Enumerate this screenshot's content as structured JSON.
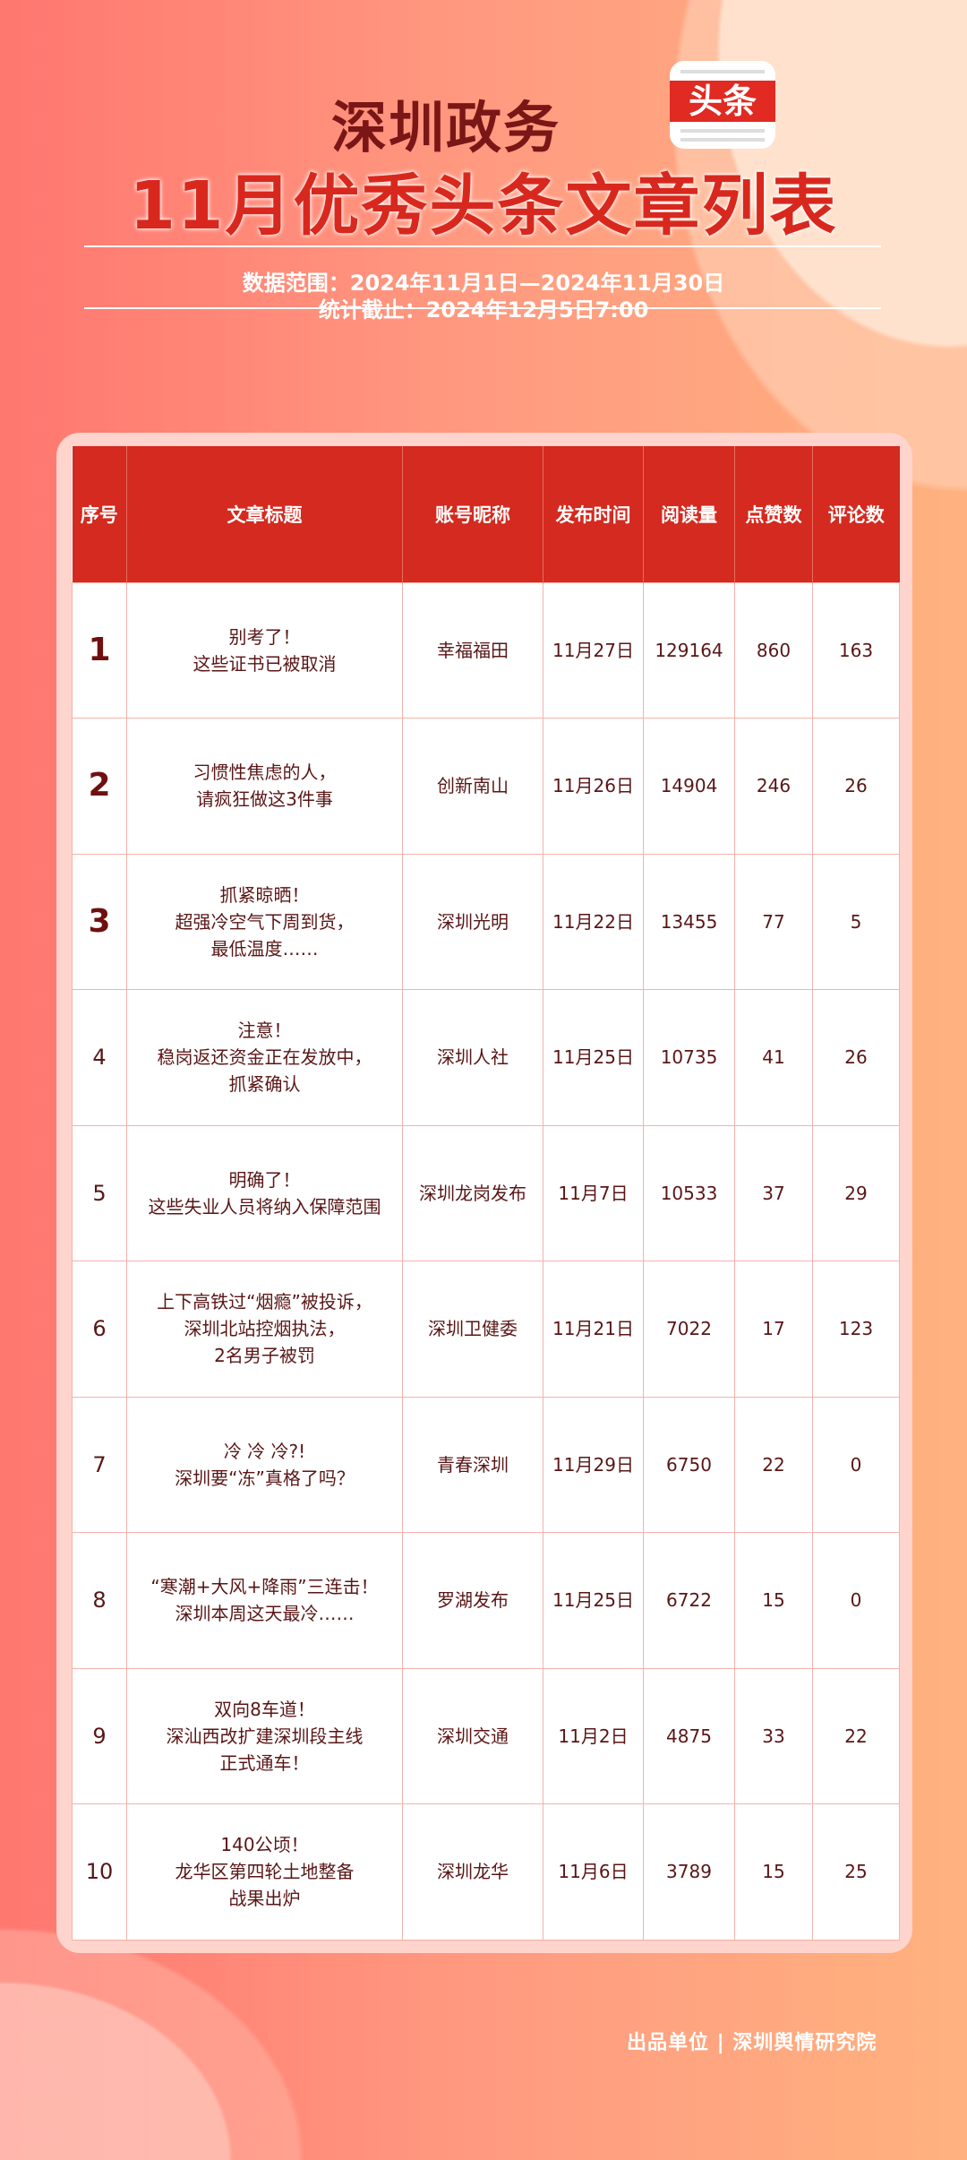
{
  "header": {
    "title_line1": "深圳政务",
    "logo_text": "头条",
    "title_line2": "11月优秀头条文章列表",
    "data_range": "数据范围：2024年11月1日—2024年11月30日",
    "cutoff": "统计截止：2024年12月5日7:00"
  },
  "table": {
    "columns": [
      "序号",
      "文章标题",
      "账号昵称",
      "发布时间",
      "阅读量",
      "点赞数",
      "评论数"
    ],
    "rows": [
      {
        "rank": "1",
        "title": "别考了！\n这些证书已被取消",
        "account": "幸福福田",
        "date": "11月27日",
        "reads": "129164",
        "likes": "860",
        "comments": "163"
      },
      {
        "rank": "2",
        "title": "习惯性焦虑的人，\n请疯狂做这3件事",
        "account": "创新南山",
        "date": "11月26日",
        "reads": "14904",
        "likes": "246",
        "comments": "26"
      },
      {
        "rank": "3",
        "title": "抓紧晾晒！\n超强冷空气下周到货，\n最低温度……",
        "account": "深圳光明",
        "date": "11月22日",
        "reads": "13455",
        "likes": "77",
        "comments": "5"
      },
      {
        "rank": "4",
        "title": "注意！\n稳岗返还资金正在发放中，\n抓紧确认",
        "account": "深圳人社",
        "date": "11月25日",
        "reads": "10735",
        "likes": "41",
        "comments": "26"
      },
      {
        "rank": "5",
        "title": "明确了！\n这些失业人员将纳入保障范围",
        "account": "深圳龙岗发布",
        "date": "11月7日",
        "reads": "10533",
        "likes": "37",
        "comments": "29"
      },
      {
        "rank": "6",
        "title": "上下高铁过“烟瘾”被投诉，\n深圳北站控烟执法，\n2名男子被罚",
        "account": "深圳卫健委",
        "date": "11月21日",
        "reads": "7022",
        "likes": "17",
        "comments": "123"
      },
      {
        "rank": "7",
        "title": "冷 冷 冷?!\n深圳要“冻”真格了吗？",
        "account": "青春深圳",
        "date": "11月29日",
        "reads": "6750",
        "likes": "22",
        "comments": "0"
      },
      {
        "rank": "8",
        "title": "“寒潮+大风+降雨”三连击！\n深圳本周这天最冷……",
        "account": "罗湖发布",
        "date": "11月25日",
        "reads": "6722",
        "likes": "15",
        "comments": "0"
      },
      {
        "rank": "9",
        "title": "双向8车道！\n深汕西改扩建深圳段主线\n正式通车！",
        "account": "深圳交通",
        "date": "11月2日",
        "reads": "4875",
        "likes": "33",
        "comments": "22"
      },
      {
        "rank": "10",
        "title": "140公顷！\n龙华区第四轮土地整备\n战果出炉",
        "account": "深圳龙华",
        "date": "11月6日",
        "reads": "3789",
        "likes": "15",
        "comments": "25"
      }
    ]
  },
  "footer": {
    "producer": "出品单位 | 深圳舆情研究院"
  },
  "colors": {
    "header_red": "#d42a1f",
    "title_dark": "#7a1616",
    "text": "#5a1616"
  }
}
